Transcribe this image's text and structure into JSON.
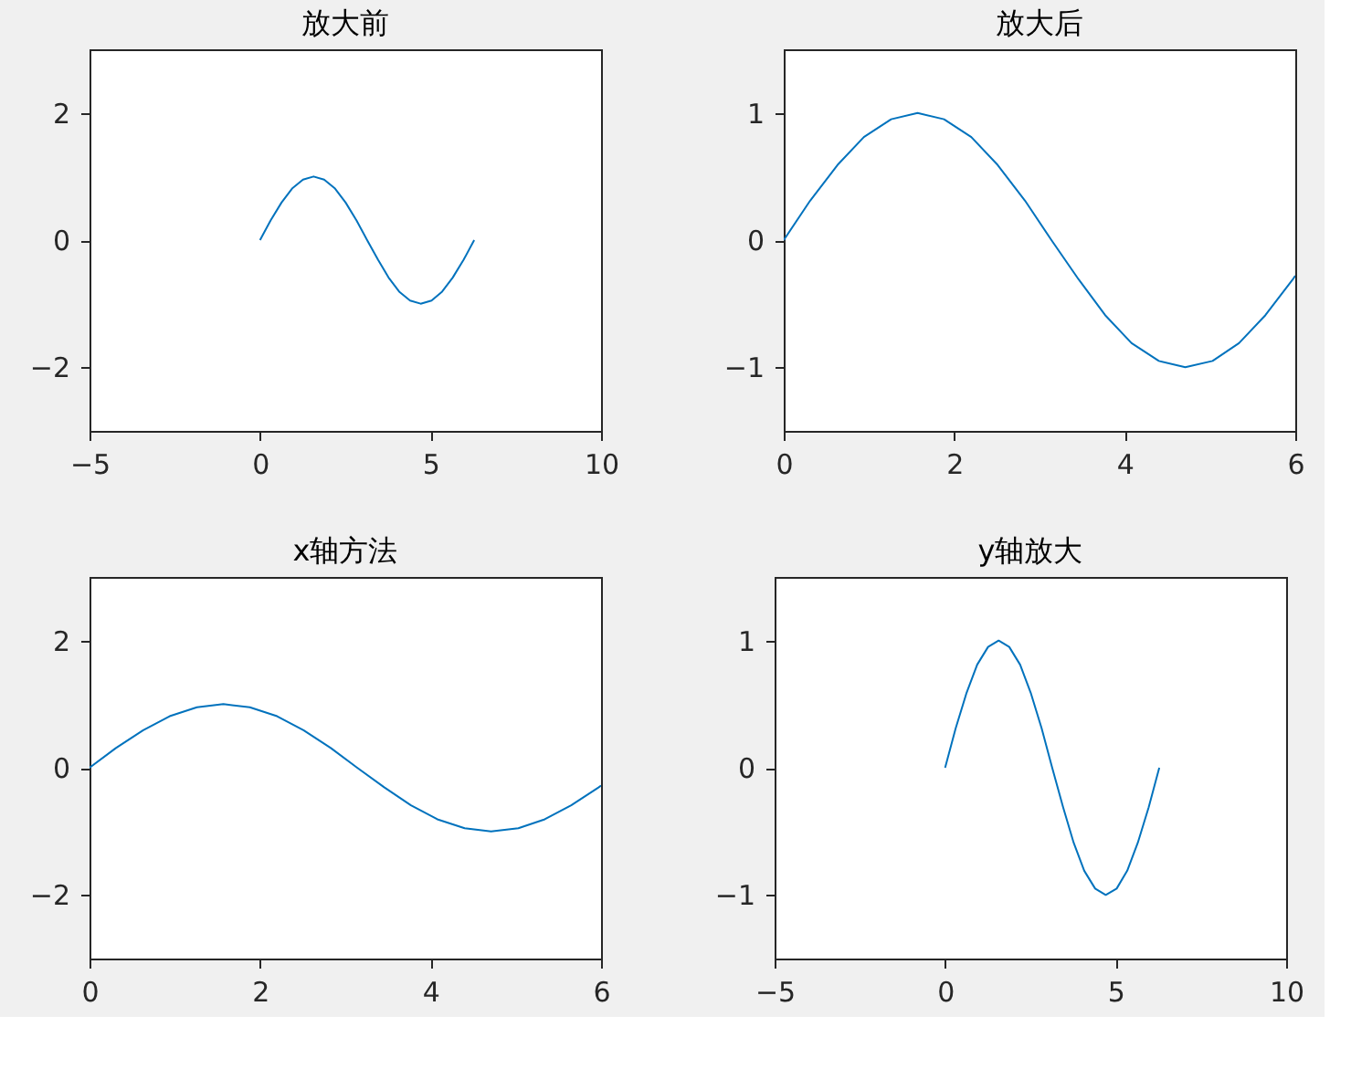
{
  "chart_data": [
    {
      "type": "line",
      "title": "放大前",
      "x": [
        0,
        0.31,
        0.63,
        0.94,
        1.26,
        1.57,
        1.88,
        2.2,
        2.51,
        2.83,
        3.14,
        3.46,
        3.77,
        4.08,
        4.4,
        4.71,
        5.03,
        5.34,
        5.65,
        5.97,
        6.28
      ],
      "series": [
        {
          "color": "#0072bd",
          "values": [
            0,
            0.31,
            0.59,
            0.81,
            0.95,
            1,
            0.95,
            0.81,
            0.59,
            0.31,
            0,
            -0.31,
            -0.59,
            -0.81,
            -0.95,
            -1,
            -0.95,
            -0.81,
            -0.59,
            -0.31,
            0
          ]
        }
      ],
      "xlim": [
        -5,
        10
      ],
      "ylim": [
        -3,
        3
      ],
      "xticks": [
        -5,
        0,
        5,
        10
      ],
      "yticks": [
        -2,
        0,
        2
      ],
      "grid": false
    },
    {
      "type": "line",
      "title": "放大后",
      "x": [
        0,
        0.31,
        0.63,
        0.94,
        1.26,
        1.57,
        1.88,
        2.2,
        2.51,
        2.83,
        3.14,
        3.46,
        3.77,
        4.08,
        4.4,
        4.71,
        5.03,
        5.34,
        5.65,
        5.97,
        6
      ],
      "series": [
        {
          "color": "#0072bd",
          "values": [
            0,
            0.31,
            0.59,
            0.81,
            0.95,
            1,
            0.95,
            0.81,
            0.59,
            0.31,
            0,
            -0.31,
            -0.59,
            -0.81,
            -0.95,
            -1,
            -0.95,
            -0.81,
            -0.59,
            -0.31,
            -0.28
          ]
        }
      ],
      "xlim": [
        0,
        6
      ],
      "ylim": [
        -1.5,
        1.5
      ],
      "xticks": [
        0,
        2,
        4,
        6
      ],
      "yticks": [
        -1,
        0,
        1
      ],
      "grid": false
    },
    {
      "type": "line",
      "title": "x轴方法",
      "x": [
        0,
        0.31,
        0.63,
        0.94,
        1.26,
        1.57,
        1.88,
        2.2,
        2.51,
        2.83,
        3.14,
        3.46,
        3.77,
        4.08,
        4.4,
        4.71,
        5.03,
        5.34,
        5.65,
        5.97,
        6
      ],
      "series": [
        {
          "color": "#0072bd",
          "values": [
            0,
            0.31,
            0.59,
            0.81,
            0.95,
            1,
            0.95,
            0.81,
            0.59,
            0.31,
            0,
            -0.31,
            -0.59,
            -0.81,
            -0.95,
            -1,
            -0.95,
            -0.81,
            -0.59,
            -0.31,
            -0.28
          ]
        }
      ],
      "xlim": [
        0,
        6
      ],
      "ylim": [
        -3,
        3
      ],
      "xticks": [
        0,
        2,
        4,
        6
      ],
      "yticks": [
        -2,
        0,
        2
      ],
      "grid": false
    },
    {
      "type": "line",
      "title": "y轴放大",
      "x": [
        0,
        0.31,
        0.63,
        0.94,
        1.26,
        1.57,
        1.88,
        2.2,
        2.51,
        2.83,
        3.14,
        3.46,
        3.77,
        4.08,
        4.4,
        4.71,
        5.03,
        5.34,
        5.65,
        5.97,
        6.28
      ],
      "series": [
        {
          "color": "#0072bd",
          "values": [
            0,
            0.31,
            0.59,
            0.81,
            0.95,
            1,
            0.95,
            0.81,
            0.59,
            0.31,
            0,
            -0.31,
            -0.59,
            -0.81,
            -0.95,
            -1,
            -0.95,
            -0.81,
            -0.59,
            -0.31,
            0
          ]
        }
      ],
      "xlim": [
        -5,
        10
      ],
      "ylim": [
        -1.5,
        1.5
      ],
      "xticks": [
        -5,
        0,
        5,
        10
      ],
      "yticks": [
        -1,
        0,
        1
      ],
      "grid": false
    }
  ]
}
